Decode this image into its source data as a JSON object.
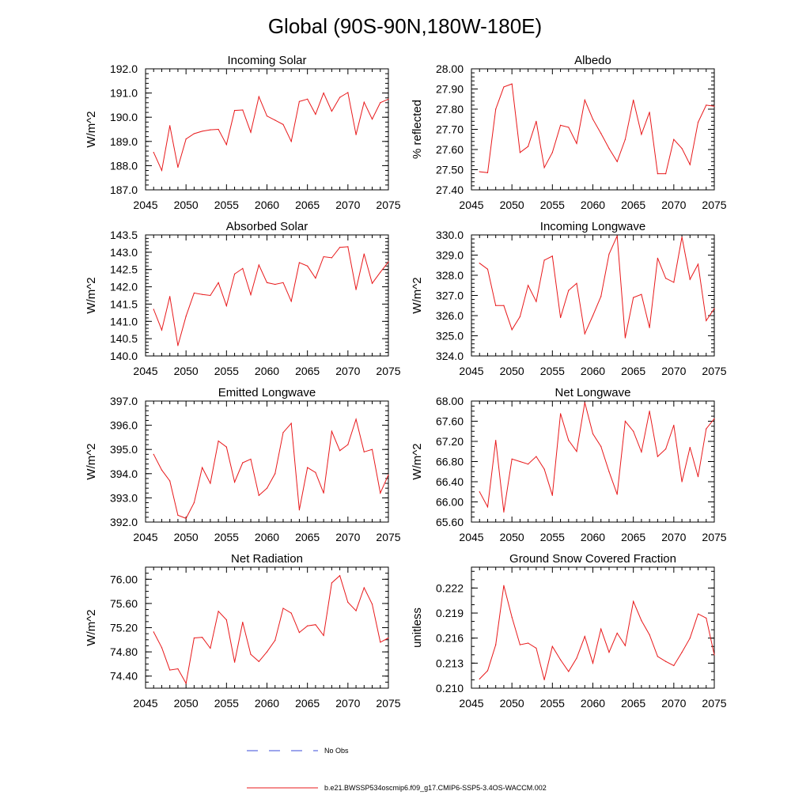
{
  "title": "Global (90S-90N,180W-180E)",
  "legend": {
    "obs_label": "No Obs",
    "model_label": "b.e21.BWSSP534oscmip6.f09_g17.CMIP6-SSP5-3.4OS-WACCM.002",
    "obs_color": "#3a4bd8",
    "model_color": "#e8191b"
  },
  "colors": {
    "line": "#e8191b",
    "axis": "#000000"
  },
  "chart_data": [
    {
      "type": "line",
      "title": "Incoming Solar",
      "xlabel": "",
      "ylabel": "W/m^2",
      "xlim": [
        2045,
        2075
      ],
      "ylim": [
        187.0,
        192.0
      ],
      "xticks": [
        2045,
        2050,
        2055,
        2060,
        2065,
        2070,
        2075
      ],
      "yticks": [
        "187.0",
        "188.0",
        "189.0",
        "190.0",
        "191.0",
        "192.0"
      ],
      "yminor": 0.2,
      "x": [
        2046,
        2047,
        2048,
        2049,
        2050,
        2051,
        2052,
        2053,
        2054,
        2055,
        2056,
        2057,
        2058,
        2059,
        2060,
        2061,
        2062,
        2063,
        2064,
        2065,
        2066,
        2067,
        2068,
        2069,
        2070,
        2071,
        2072,
        2073,
        2074,
        2075
      ],
      "values": [
        188.55,
        187.8,
        189.65,
        187.93,
        189.1,
        189.32,
        189.42,
        189.48,
        189.5,
        188.87,
        190.28,
        190.3,
        189.38,
        190.85,
        190.05,
        189.88,
        189.7,
        189.0,
        190.65,
        190.75,
        190.12,
        191.0,
        190.25,
        190.82,
        191.02,
        189.28,
        190.62,
        189.92,
        190.6,
        190.75
      ]
    },
    {
      "type": "line",
      "title": "Albedo",
      "xlabel": "",
      "ylabel": "% reflected",
      "xlim": [
        2045,
        2075
      ],
      "ylim": [
        27.4,
        28.0
      ],
      "xticks": [
        2045,
        2050,
        2055,
        2060,
        2065,
        2070,
        2075
      ],
      "yticks": [
        "27.40",
        "27.50",
        "27.60",
        "27.70",
        "27.80",
        "27.90",
        "28.00"
      ],
      "yminor": 0.02,
      "x": [
        2046,
        2047,
        2048,
        2049,
        2050,
        2051,
        2052,
        2053,
        2054,
        2055,
        2056,
        2057,
        2058,
        2059,
        2060,
        2061,
        2062,
        2063,
        2064,
        2065,
        2066,
        2067,
        2068,
        2069,
        2070,
        2071,
        2072,
        2073,
        2074,
        2075
      ],
      "values": [
        27.49,
        27.485,
        27.8,
        27.91,
        27.925,
        27.585,
        27.615,
        27.74,
        27.51,
        27.585,
        27.72,
        27.71,
        27.63,
        27.845,
        27.75,
        27.68,
        27.605,
        27.54,
        27.65,
        27.845,
        27.675,
        27.785,
        27.48,
        27.48,
        27.65,
        27.605,
        27.525,
        27.735,
        27.82,
        27.815
      ]
    },
    {
      "type": "line",
      "title": "Absorbed Solar",
      "xlabel": "",
      "ylabel": "W/m^2",
      "xlim": [
        2045,
        2075
      ],
      "ylim": [
        140.0,
        143.5
      ],
      "xticks": [
        2045,
        2050,
        2055,
        2060,
        2065,
        2070,
        2075
      ],
      "yticks": [
        "140.0",
        "140.5",
        "141.0",
        "141.5",
        "142.0",
        "142.5",
        "143.0",
        "143.5"
      ],
      "yminor": 0.1,
      "x": [
        2046,
        2047,
        2048,
        2049,
        2050,
        2051,
        2052,
        2053,
        2054,
        2055,
        2056,
        2057,
        2058,
        2059,
        2060,
        2061,
        2062,
        2063,
        2064,
        2065,
        2066,
        2067,
        2068,
        2069,
        2070,
        2071,
        2072,
        2073,
        2074,
        2075
      ],
      "values": [
        141.35,
        140.75,
        141.72,
        140.3,
        141.15,
        141.82,
        141.78,
        141.75,
        142.12,
        141.45,
        142.37,
        142.53,
        141.77,
        142.63,
        142.12,
        142.07,
        142.12,
        141.58,
        142.7,
        142.6,
        142.25,
        142.87,
        142.84,
        143.14,
        143.16,
        141.92,
        142.95,
        142.1,
        142.42,
        142.72
      ]
    },
    {
      "type": "line",
      "title": "Incoming Longwave",
      "xlabel": "",
      "ylabel": "W/m^2",
      "xlim": [
        2045,
        2075
      ],
      "ylim": [
        324.0,
        330.0
      ],
      "xticks": [
        2045,
        2050,
        2055,
        2060,
        2065,
        2070,
        2075
      ],
      "yticks": [
        "324.0",
        "325.0",
        "326.0",
        "327.0",
        "328.0",
        "329.0",
        "330.0"
      ],
      "yminor": 0.2,
      "x": [
        2046,
        2047,
        2048,
        2049,
        2050,
        2051,
        2052,
        2053,
        2054,
        2055,
        2056,
        2057,
        2058,
        2059,
        2060,
        2061,
        2062,
        2063,
        2064,
        2065,
        2066,
        2067,
        2068,
        2069,
        2070,
        2071,
        2072,
        2073,
        2074,
        2075
      ],
      "values": [
        328.6,
        328.3,
        326.5,
        326.5,
        325.3,
        325.95,
        327.5,
        326.7,
        328.75,
        328.95,
        325.9,
        327.25,
        327.6,
        325.1,
        326.0,
        326.95,
        329.05,
        329.95,
        324.9,
        326.9,
        327.05,
        325.4,
        328.85,
        327.85,
        327.65,
        329.9,
        327.8,
        328.55,
        325.75,
        326.35
      ]
    },
    {
      "type": "line",
      "title": "Emitted Longwave",
      "xlabel": "",
      "ylabel": "W/m^2",
      "xlim": [
        2045,
        2075
      ],
      "ylim": [
        392.0,
        397.0
      ],
      "xticks": [
        2045,
        2050,
        2055,
        2060,
        2065,
        2070,
        2075
      ],
      "yticks": [
        "392.0",
        "393.0",
        "394.0",
        "395.0",
        "396.0",
        "397.0"
      ],
      "yminor": 0.2,
      "x": [
        2046,
        2047,
        2048,
        2049,
        2050,
        2051,
        2052,
        2053,
        2054,
        2055,
        2056,
        2057,
        2058,
        2059,
        2060,
        2061,
        2062,
        2063,
        2064,
        2065,
        2066,
        2067,
        2068,
        2069,
        2070,
        2071,
        2072,
        2073,
        2074,
        2075
      ],
      "values": [
        394.8,
        394.15,
        393.7,
        392.28,
        392.15,
        392.8,
        394.25,
        393.6,
        395.35,
        395.1,
        393.65,
        394.45,
        394.6,
        393.1,
        393.4,
        394.0,
        395.7,
        396.08,
        392.5,
        394.25,
        394.05,
        393.2,
        395.75,
        394.95,
        395.2,
        396.25,
        394.9,
        395.0,
        393.2,
        393.95
      ]
    },
    {
      "type": "line",
      "title": "Net Longwave",
      "xlabel": "",
      "ylabel": "W/m^2",
      "xlim": [
        2045,
        2075
      ],
      "ylim": [
        65.6,
        68.0
      ],
      "xticks": [
        2045,
        2050,
        2055,
        2060,
        2065,
        2070,
        2075
      ],
      "yticks": [
        "65.60",
        "66.00",
        "66.40",
        "66.80",
        "67.20",
        "67.60",
        "68.00"
      ],
      "yminor": 0.1,
      "x": [
        2046,
        2047,
        2048,
        2049,
        2050,
        2051,
        2052,
        2053,
        2054,
        2055,
        2056,
        2057,
        2058,
        2059,
        2060,
        2061,
        2062,
        2063,
        2064,
        2065,
        2066,
        2067,
        2068,
        2069,
        2070,
        2071,
        2072,
        2073,
        2074,
        2075
      ],
      "values": [
        66.2,
        65.9,
        67.22,
        65.8,
        66.85,
        66.8,
        66.75,
        66.9,
        66.65,
        66.13,
        67.75,
        67.22,
        67.0,
        67.97,
        67.35,
        67.1,
        66.6,
        66.15,
        67.6,
        67.4,
        66.99,
        67.8,
        66.9,
        67.05,
        67.52,
        66.4,
        67.08,
        66.5,
        67.45,
        67.65
      ]
    },
    {
      "type": "line",
      "title": "Net Radiation",
      "xlabel": "",
      "ylabel": "W/m^2",
      "xlim": [
        2045,
        2075
      ],
      "ylim": [
        74.2,
        76.2
      ],
      "xticks": [
        2045,
        2050,
        2055,
        2060,
        2065,
        2070,
        2075
      ],
      "yticks": [
        "74.40",
        "74.80",
        "75.20",
        "75.60",
        "76.00"
      ],
      "yminor": 0.1,
      "x": [
        2046,
        2047,
        2048,
        2049,
        2050,
        2051,
        2052,
        2053,
        2054,
        2055,
        2056,
        2057,
        2058,
        2059,
        2060,
        2061,
        2062,
        2063,
        2064,
        2065,
        2066,
        2067,
        2068,
        2069,
        2070,
        2071,
        2072,
        2073,
        2074,
        2075
      ],
      "values": [
        75.13,
        74.87,
        74.5,
        74.52,
        74.28,
        75.03,
        75.04,
        74.86,
        75.47,
        75.33,
        74.63,
        75.29,
        74.76,
        74.64,
        74.8,
        74.99,
        75.52,
        75.44,
        75.12,
        75.23,
        75.25,
        75.07,
        75.94,
        76.06,
        75.62,
        75.48,
        75.86,
        75.59,
        74.96,
        75.03
      ]
    },
    {
      "type": "line",
      "title": "Ground Snow Covered Fraction",
      "xlabel": "",
      "ylabel": "unitless",
      "xlim": [
        2045,
        2075
      ],
      "ylim": [
        0.21,
        0.2245
      ],
      "xticks": [
        2045,
        2050,
        2055,
        2060,
        2065,
        2070,
        2075
      ],
      "yticks": [
        "0.210",
        "0.213",
        "0.216",
        "0.219",
        "0.222"
      ],
      "yminor": 0.001,
      "x": [
        2046,
        2047,
        2048,
        2049,
        2050,
        2051,
        2052,
        2053,
        2054,
        2055,
        2056,
        2057,
        2058,
        2059,
        2060,
        2061,
        2062,
        2063,
        2064,
        2065,
        2066,
        2067,
        2068,
        2069,
        2070,
        2071,
        2072,
        2073,
        2074,
        2075
      ],
      "values": [
        0.2111,
        0.2121,
        0.2152,
        0.2223,
        0.2185,
        0.2152,
        0.2154,
        0.2148,
        0.211,
        0.215,
        0.2134,
        0.212,
        0.2136,
        0.2162,
        0.213,
        0.2171,
        0.2143,
        0.2166,
        0.2151,
        0.2204,
        0.2181,
        0.2164,
        0.2138,
        0.2132,
        0.2127,
        0.2143,
        0.216,
        0.2189,
        0.2184,
        0.214
      ]
    }
  ]
}
